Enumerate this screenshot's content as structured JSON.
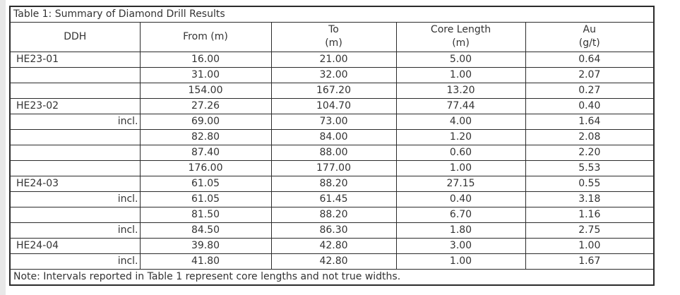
{
  "colors": {
    "bg": "#ffffff",
    "strip": "#e8e8e8",
    "border": "#2b2b2b",
    "text": "#333333"
  },
  "table": {
    "title": "Table 1: Summary of Diamond Drill Results",
    "columns": [
      {
        "line1": "DDH",
        "line2": ""
      },
      {
        "line1": "From (m)",
        "line2": ""
      },
      {
        "line1": "To",
        "line2": "(m)"
      },
      {
        "line1": "Core Length",
        "line2": "(m)"
      },
      {
        "line1": "Au",
        "line2": "(g/t)"
      }
    ],
    "rows": [
      {
        "ddh": "HE23-01",
        "incl": false,
        "from": "16.00",
        "to": "21.00",
        "core_length": "5.00",
        "au": "0.64"
      },
      {
        "ddh": "",
        "incl": false,
        "from": "31.00",
        "to": "32.00",
        "core_length": "1.00",
        "au": "2.07"
      },
      {
        "ddh": "",
        "incl": false,
        "from": "154.00",
        "to": "167.20",
        "core_length": "13.20",
        "au": "0.27"
      },
      {
        "ddh": "HE23-02",
        "incl": false,
        "from": "27.26",
        "to": "104.70",
        "core_length": "77.44",
        "au": "0.40"
      },
      {
        "ddh": "incl.",
        "incl": true,
        "from": "69.00",
        "to": "73.00",
        "core_length": "4.00",
        "au": "1.64"
      },
      {
        "ddh": "",
        "incl": false,
        "from": "82.80",
        "to": "84.00",
        "core_length": "1.20",
        "au": "2.08"
      },
      {
        "ddh": "",
        "incl": false,
        "from": "87.40",
        "to": "88.00",
        "core_length": "0.60",
        "au": "2.20"
      },
      {
        "ddh": "",
        "incl": false,
        "from": "176.00",
        "to": "177.00",
        "core_length": "1.00",
        "au": "5.53"
      },
      {
        "ddh": "HE24-03",
        "incl": false,
        "from": "61.05",
        "to": "88.20",
        "core_length": "27.15",
        "au": "0.55"
      },
      {
        "ddh": "incl.",
        "incl": true,
        "from": "61.05",
        "to": "61.45",
        "core_length": "0.40",
        "au": "3.18"
      },
      {
        "ddh": "",
        "incl": false,
        "from": "81.50",
        "to": "88.20",
        "core_length": "6.70",
        "au": "1.16"
      },
      {
        "ddh": "incl.",
        "incl": true,
        "from": "84.50",
        "to": "86.30",
        "core_length": "1.80",
        "au": "2.75"
      },
      {
        "ddh": "HE24-04",
        "incl": false,
        "from": "39.80",
        "to": "42.80",
        "core_length": "3.00",
        "au": "1.00"
      },
      {
        "ddh": "incl.",
        "incl": true,
        "from": "41.80",
        "to": "42.80",
        "core_length": "1.00",
        "au": "1.67"
      }
    ],
    "note": "Note: Intervals reported in Table 1 represent core lengths and not true widths."
  }
}
